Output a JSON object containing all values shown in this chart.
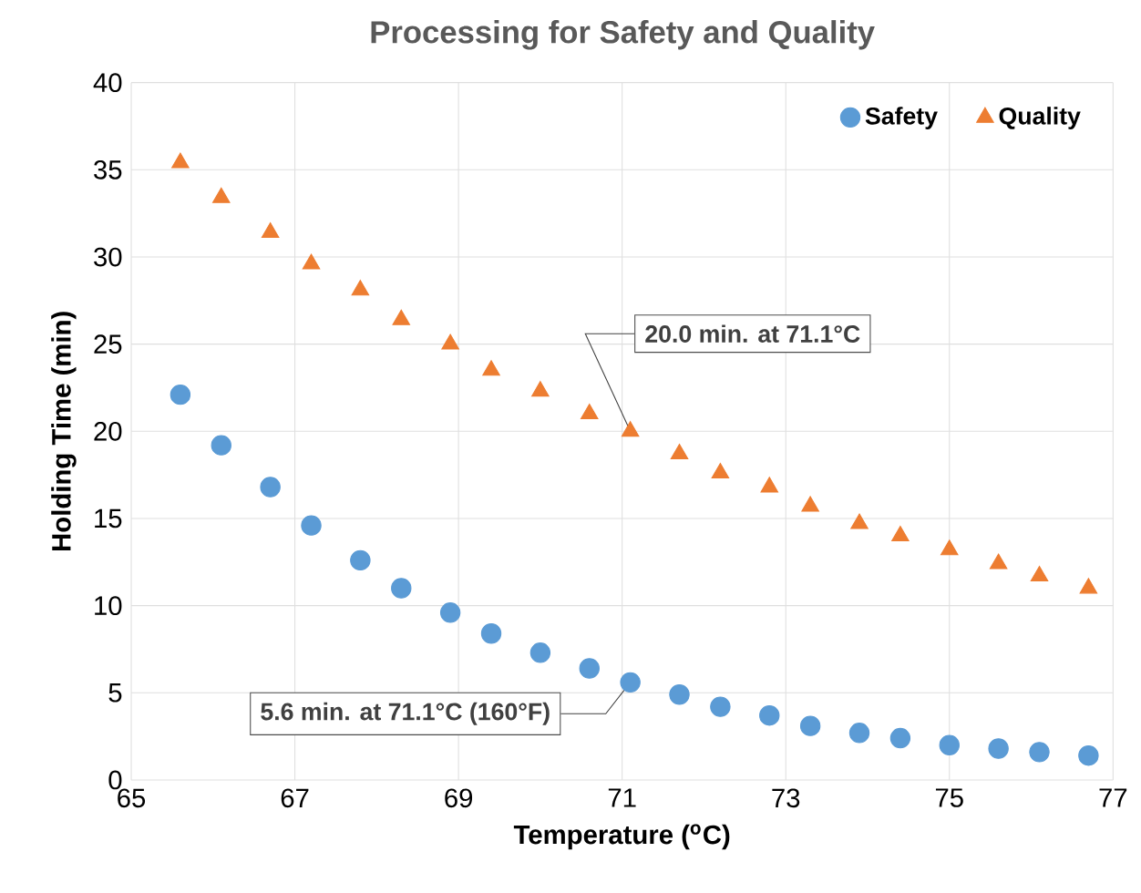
{
  "chart_data": {
    "type": "scatter",
    "title": "Processing for Safety and Quality",
    "xlabel": "Temperature ($^{o}$C)",
    "ylabel": "Holding Time (min)",
    "xlim": [
      65,
      77
    ],
    "xticks": [
      65,
      67,
      69,
      71,
      73,
      75,
      77
    ],
    "ylim": [
      0,
      40
    ],
    "yticks": [
      0,
      5,
      10,
      15,
      20,
      25,
      30,
      35,
      40
    ],
    "grid": true,
    "legend": "top right",
    "series": [
      {
        "name": "Safety",
        "color": "#5b9bd5",
        "marker": "circle",
        "x": [
          65.6,
          66.1,
          66.7,
          67.2,
          67.8,
          68.3,
          68.9,
          69.4,
          70.0,
          70.6,
          71.1,
          71.7,
          72.2,
          72.8,
          73.3,
          73.9,
          74.4,
          75.0,
          75.6,
          76.1,
          76.7
        ],
        "values": [
          22.1,
          19.2,
          16.8,
          14.6,
          12.6,
          11.0,
          9.6,
          8.4,
          7.3,
          6.4,
          5.6,
          4.9,
          4.2,
          3.7,
          3.1,
          2.7,
          2.4,
          2.0,
          1.8,
          1.6,
          1.4
        ]
      },
      {
        "name": "Quality",
        "color": "#ed7d31",
        "marker": "triangle",
        "x": [
          65.6,
          66.1,
          66.7,
          67.2,
          67.8,
          68.3,
          68.9,
          69.4,
          70.0,
          70.6,
          71.1,
          71.7,
          72.2,
          72.8,
          73.3,
          73.9,
          74.4,
          75.0,
          75.6,
          76.1,
          76.7
        ],
        "values": [
          35.4,
          33.4,
          31.4,
          29.6,
          28.1,
          26.4,
          25.0,
          23.5,
          22.3,
          21.0,
          20.0,
          18.7,
          17.6,
          16.8,
          15.7,
          14.7,
          14.0,
          13.2,
          12.4,
          11.7,
          11.0
        ]
      }
    ],
    "annotations": [
      {
        "text": "20.0 min. at 71.1°C",
        "x": 71.1,
        "y": 20.0
      },
      {
        "text": "5.6 min. at 71.1°C (160°F)",
        "x": 71.1,
        "y": 5.6
      }
    ]
  }
}
